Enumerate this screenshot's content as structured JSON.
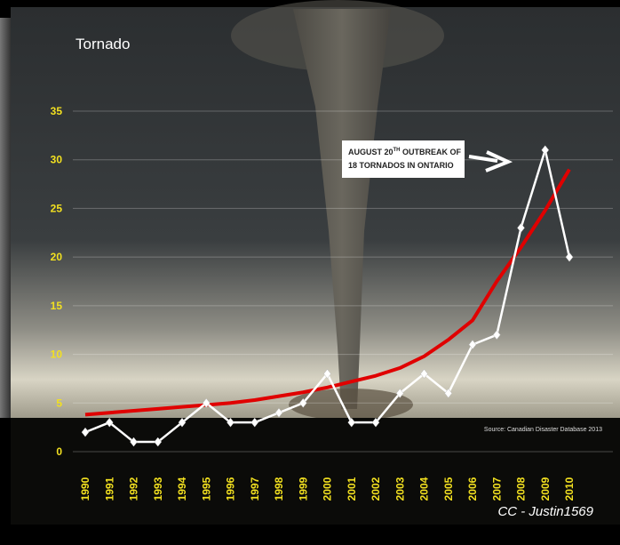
{
  "chart_data": {
    "type": "line",
    "title": "Tornado",
    "categories": [
      "1990",
      "1991",
      "1992",
      "1993",
      "1994",
      "1995",
      "1996",
      "1997",
      "1998",
      "1999",
      "2000",
      "2001",
      "2002",
      "2003",
      "2004",
      "2005",
      "2006",
      "2007",
      "2008",
      "2009",
      "2010"
    ],
    "series": [
      {
        "color": "#ffffff",
        "marker": "diamond",
        "values": [
          2,
          3,
          1,
          1,
          3,
          5,
          3,
          3,
          4,
          5,
          8,
          3,
          3,
          6,
          8,
          6,
          11,
          12,
          23,
          31,
          20
        ]
      },
      {
        "color": "#e00000",
        "marker": "none",
        "values": [
          3.8,
          4.0,
          4.2,
          4.4,
          4.6,
          4.8,
          5.0,
          5.3,
          5.7,
          6.1,
          6.6,
          7.2,
          7.8,
          8.6,
          9.8,
          11.5,
          13.5,
          17.5,
          21,
          24.8,
          29
        ]
      }
    ],
    "ylim": [
      0,
      35
    ],
    "yticks": [
      0,
      5,
      10,
      15,
      20,
      25,
      30,
      35
    ],
    "grid": true,
    "annotation": {
      "line1": [
        "AUGUST 20",
        "TH",
        " OUTBREAK OF"
      ],
      "line2": "18 TORNADOS IN ONTARIO"
    },
    "source": "Source: Canadian Disaster Database 2013",
    "credit": "CC - Justin1569"
  }
}
